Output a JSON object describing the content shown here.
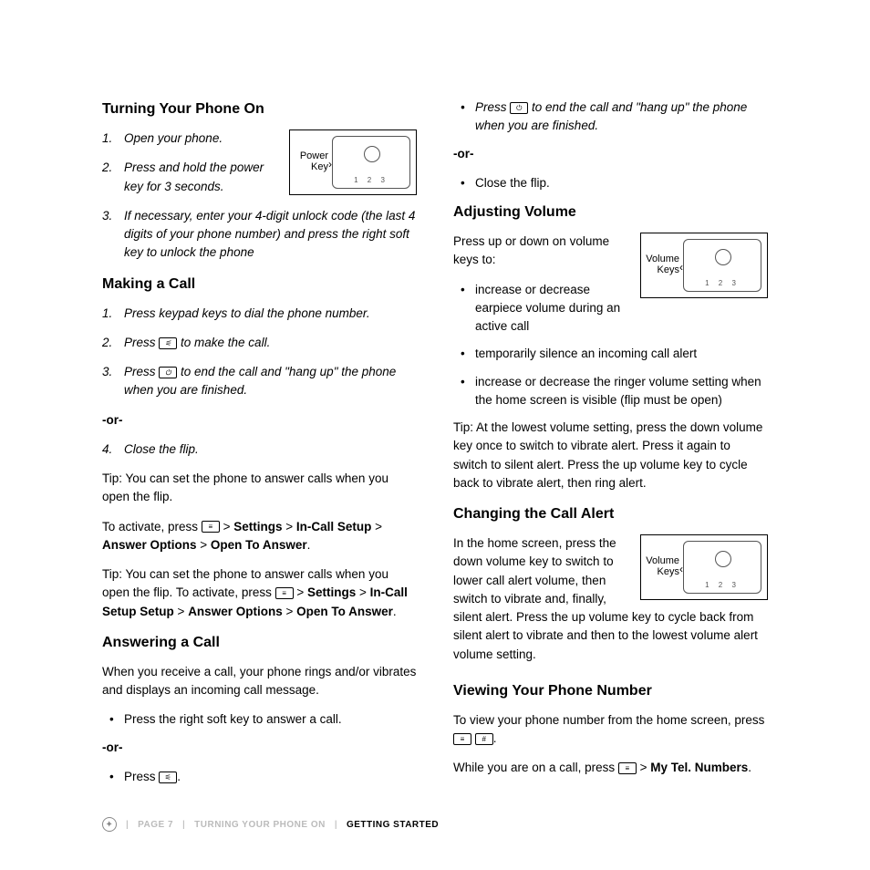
{
  "left": {
    "s1": {
      "heading": "Turning Your Phone On",
      "step1": "Open your phone.",
      "step2": "Press and hold the power key for 3 seconds.",
      "step3": "If necessary, enter your 4-digit unlock code (the last 4 digits of your phone number) and press the right soft key to unlock the phone",
      "diagram_label": "Power Key"
    },
    "s2": {
      "heading": "Making a Call",
      "step1": "Press keypad keys to dial the phone number.",
      "step2a": " Press ",
      "step2b": " to make the call.",
      "step3a": "Press ",
      "step3b": "  to end the call and \"hang up\" the phone when you are finished.",
      "or": "-or",
      "step4": " Close the flip.",
      "tip1": "Tip: You can set the phone to answer calls when you open the flip.",
      "activate_a": "To activate, press ",
      "activate_b": " > ",
      "settings": "Settings",
      "incall": "In-Call Setup",
      "answer_options": "Answer Options",
      "open_to_answer": "Open To Answer",
      "tip2a": "Tip: You can set the phone to answer calls when you open the flip. To activate, press ",
      "tip2b": " > "
    },
    "s3": {
      "heading": "Answering a Call",
      "p1": "When you receive a call, your phone rings and/or vibrates and displays an incoming call message.",
      "b1": "Press the right soft key to answer a call.",
      "or": "-or-",
      "b2a": "Press ",
      "b2b": "."
    }
  },
  "right": {
    "top": {
      "b1a": "Press ",
      "b1b": " to end the call and \"hang up\" the phone when you are finished.",
      "or": "-or-",
      "b2": "Close the flip."
    },
    "s1": {
      "heading": "Adjusting Volume",
      "p1": "Press up or down on volume keys to:",
      "diagram_label": "Volume Keys",
      "b1": "increase or decrease earpiece volume during an active call",
      "b2": " temporarily silence an incoming call alert",
      "b3": "increase or decrease the ringer volume setting when the home screen is visible (flip must be open)",
      "tip": "Tip: At the lowest volume setting, press the down volume key once to switch to vibrate alert. Press it again to switch to silent alert. Press the up volume key to cycle back to vibrate alert, then ring alert."
    },
    "s2": {
      "heading": "Changing the Call Alert",
      "diagram_label": "Volume Keys",
      "p1": "In the home screen, press the down volume key to switch to lower call alert volume, then switch to vibrate and, finally, silent alert. Press the up volume key to cycle back from silent alert to vibrate and then to the lowest volume alert volume setting."
    },
    "s3": {
      "heading": "Viewing Your Phone Number",
      "p1a": "To view your phone number from the home screen, press ",
      "p1b": ".",
      "p2a": "While you are on a call, press ",
      "p2b": " > ",
      "mytel": "My Tel. Numbers",
      "p2c": "."
    }
  },
  "footer": {
    "page": "PAGE 7",
    "crumb1": "TURNING YOUR PHONE ON",
    "crumb2": "GETTING STARTED"
  }
}
